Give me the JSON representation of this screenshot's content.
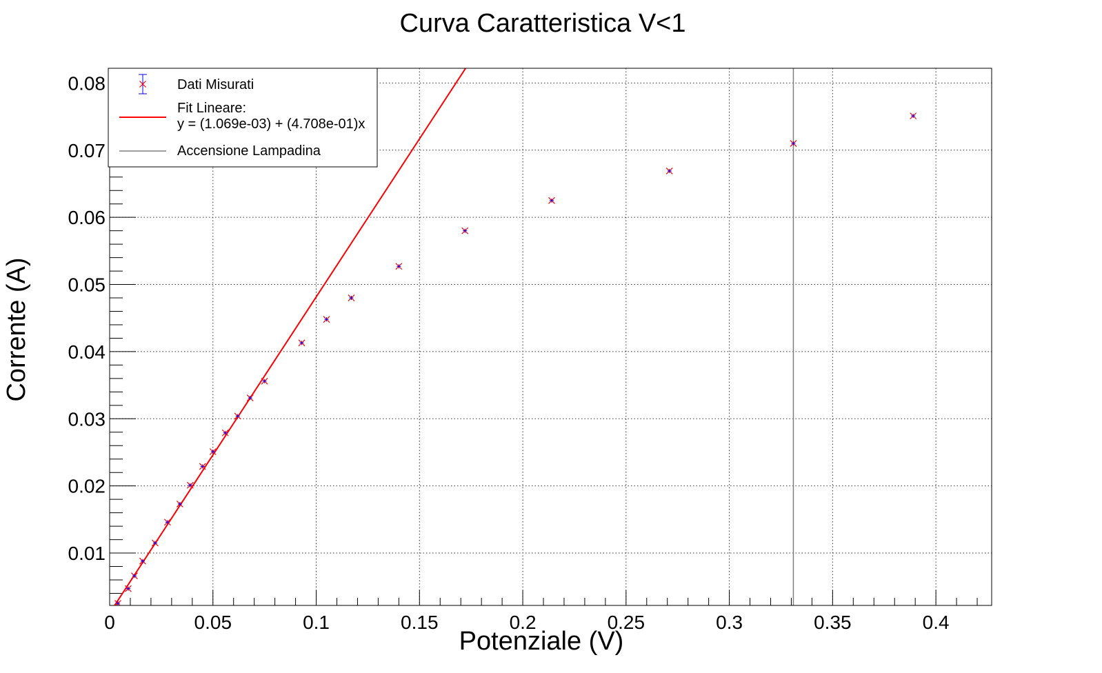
{
  "chart_data": {
    "type": "scatter",
    "title": "Curva Caratteristica V<1",
    "xlabel": "Potenziale (V)",
    "ylabel": "Corrente (A)",
    "xlim": [
      0,
      0.427
    ],
    "ylim": [
      0.0022,
      0.0822
    ],
    "grid": true,
    "legend_position": "top-left",
    "x_ticks": [
      "0",
      "0.05",
      "0.1",
      "0.15",
      "0.2",
      "0.25",
      "0.3",
      "0.35",
      "0.4"
    ],
    "y_ticks": [
      "0.01",
      "0.02",
      "0.03",
      "0.04",
      "0.05",
      "0.06",
      "0.07",
      "0.08"
    ],
    "series": [
      {
        "name": "Dati Misurati",
        "kind": "points",
        "marker": "x",
        "color": "#ff0000",
        "error_color": "#0000ff",
        "points": [
          [
            0.004,
            0.0025
          ],
          [
            0.009,
            0.0047
          ],
          [
            0.012,
            0.0066
          ],
          [
            0.016,
            0.0088
          ],
          [
            0.022,
            0.0115
          ],
          [
            0.028,
            0.0146
          ],
          [
            0.034,
            0.0173
          ],
          [
            0.039,
            0.0201
          ],
          [
            0.045,
            0.0229
          ],
          [
            0.05,
            0.0251
          ],
          [
            0.056,
            0.0279
          ],
          [
            0.062,
            0.0304
          ],
          [
            0.068,
            0.0331
          ],
          [
            0.075,
            0.0356
          ],
          [
            0.093,
            0.0413
          ],
          [
            0.105,
            0.0448
          ],
          [
            0.117,
            0.048
          ],
          [
            0.14,
            0.0527
          ],
          [
            0.172,
            0.058
          ],
          [
            0.214,
            0.0625
          ],
          [
            0.271,
            0.0669
          ],
          [
            0.331,
            0.071
          ],
          [
            0.389,
            0.0751
          ]
        ]
      },
      {
        "name": "Fit Lineare:",
        "equation": "y = (1.069e-03) + (4.708e-01)x",
        "kind": "line",
        "color": "#ff0000",
        "intercept": 0.001069,
        "slope": 0.4708
      },
      {
        "name": "Accensione Lampadina",
        "kind": "vline",
        "color": "#7f7f7f",
        "x": 0.331
      }
    ]
  }
}
